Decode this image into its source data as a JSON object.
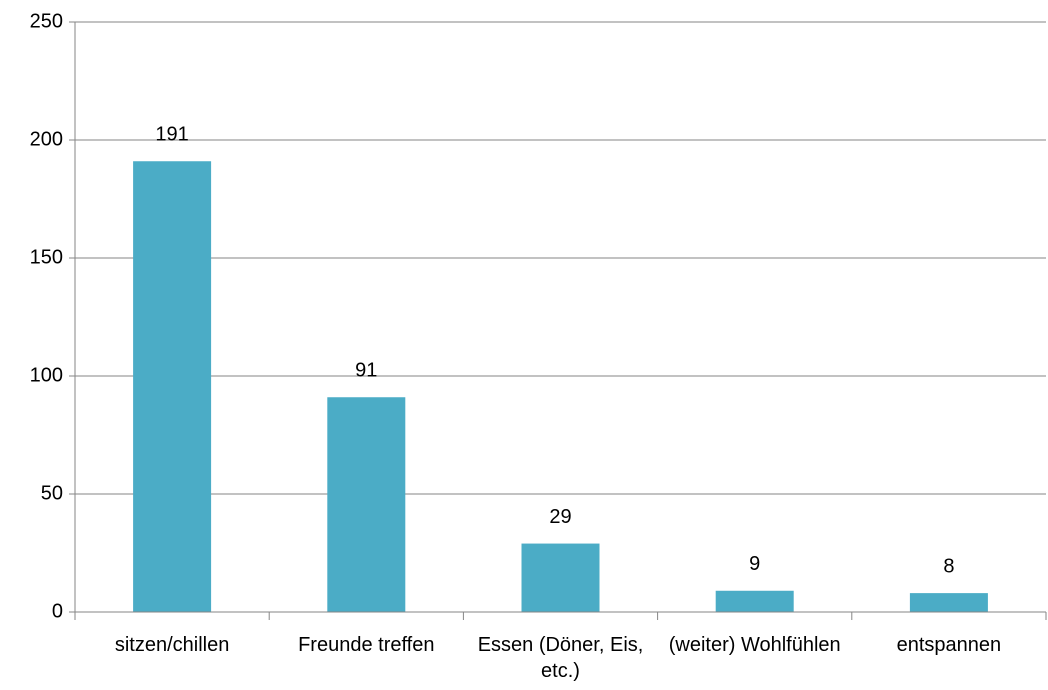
{
  "chart_data": {
    "type": "bar",
    "categories": [
      "sitzen/chillen",
      "Freunde treffen",
      "Essen (Döner, Eis, etc.)",
      "(weiter) Wohlfühlen",
      "entspannen"
    ],
    "values": [
      191,
      91,
      29,
      9,
      8
    ],
    "color": "#4bacc6",
    "ylim": [
      0,
      250
    ],
    "yticks": [
      0,
      50,
      100,
      150,
      200,
      250
    ],
    "grid": true
  }
}
